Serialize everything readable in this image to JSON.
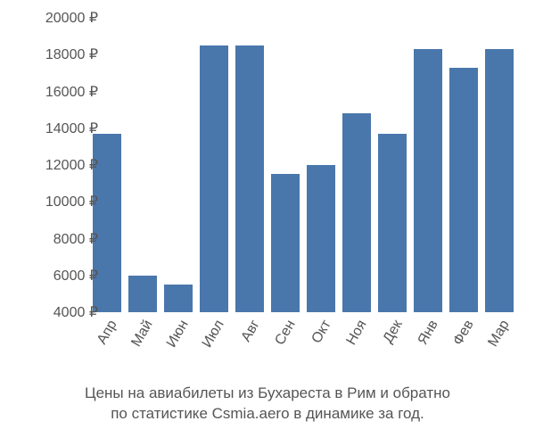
{
  "chart": {
    "type": "bar",
    "categories": [
      "Апр",
      "Май",
      "Июн",
      "Июл",
      "Авг",
      "Сен",
      "Окт",
      "Ноя",
      "Дек",
      "Янв",
      "Фев",
      "Мар"
    ],
    "values": [
      13700,
      6000,
      5500,
      18500,
      18500,
      11500,
      12000,
      14800,
      13700,
      18300,
      17300,
      18300
    ],
    "bar_color": "#4a77ab",
    "ylim": [
      4000,
      20000
    ],
    "ytick_step": 2000,
    "y_suffix": " ₽",
    "background_color": "#ffffff",
    "text_color": "#555555",
    "label_fontsize": 16,
    "caption_fontsize": 17,
    "bar_width": 0.78,
    "xlabel_rotation": -60
  },
  "caption": {
    "line1": "Цены на авиабилеты из Бухареста в Рим и обратно",
    "line2": "по статистике Csmia.aero в динамике за год."
  }
}
